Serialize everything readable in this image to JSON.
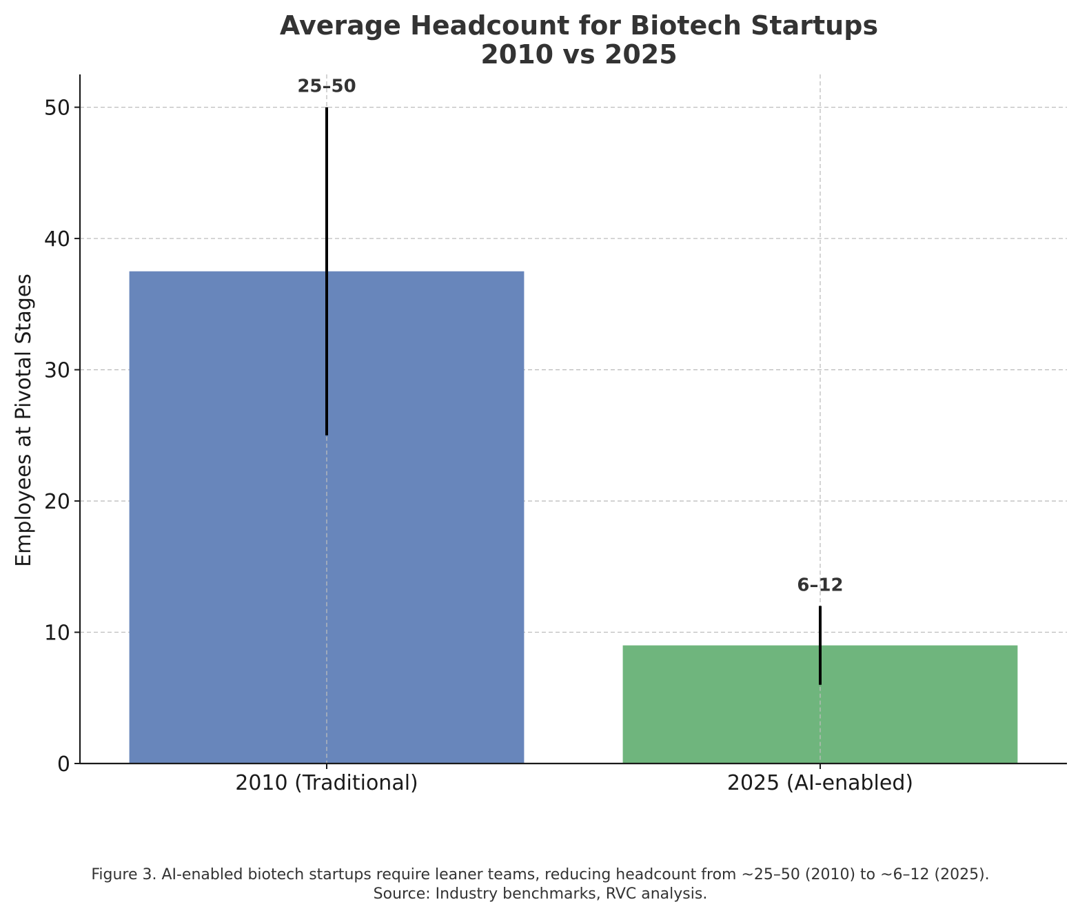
{
  "chart_data": {
    "type": "bar",
    "title": "Average Headcount for Biotech Startups",
    "subtitle": "2010 vs 2025",
    "xlabel": "",
    "ylabel": "Employees at Pivotal Stages",
    "categories": [
      "2010 (Traditional)",
      "2025 (AI-enabled)"
    ],
    "values": [
      37.5,
      9
    ],
    "ranges": [
      [
        25,
        50
      ],
      [
        6,
        12
      ]
    ],
    "range_labels": [
      "25–50",
      "6–12"
    ],
    "colors": [
      "#6886bb",
      "#6fb57d"
    ],
    "ylim": [
      0,
      52.5
    ],
    "yticks": [
      0,
      10,
      20,
      30,
      40,
      50
    ],
    "grid": true
  },
  "caption": {
    "line1": "Figure 3. AI-enabled biotech startups require leaner teams, reducing headcount from ~25–50 (2010) to ~6–12 (2025).",
    "line2": "Source: Industry benchmarks, RVC analysis."
  }
}
